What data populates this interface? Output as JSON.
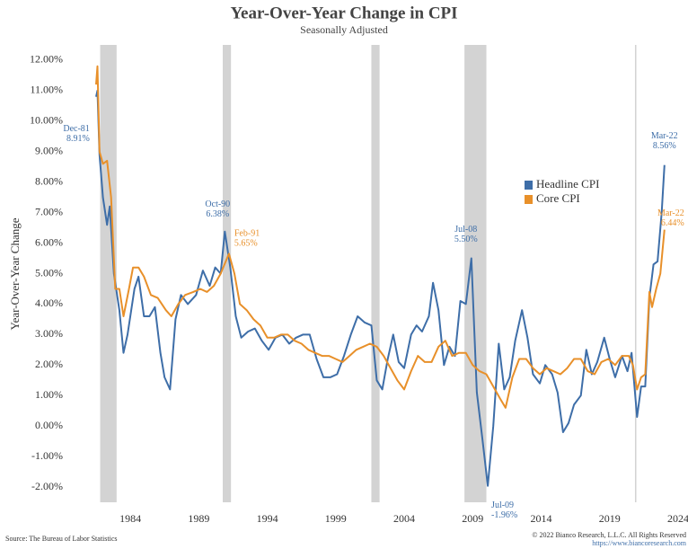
{
  "chart_data": {
    "type": "line",
    "title": "Year-Over-Year Change in CPI",
    "subtitle": "Seasonally Adjusted",
    "y_label": "Year-Over-Year Change",
    "source": "Source: The Bureau of Labor Statistics",
    "copyright": "© 2022 Bianco Research, L.L.C. All Rights Reserved",
    "url": "https://www.biancoresearch.com",
    "xlim": [
      1979.6,
      2024
    ],
    "ylim": [
      -2.5,
      12.5
    ],
    "xticks": [
      1984,
      1989,
      1994,
      1999,
      2004,
      2009,
      2014,
      2019,
      2024
    ],
    "yticks": [
      {
        "value": -2,
        "label": "-2.00%"
      },
      {
        "value": -1,
        "label": "-1.00%"
      },
      {
        "value": 0,
        "label": "0.00%"
      },
      {
        "value": 1,
        "label": "1.00%"
      },
      {
        "value": 2,
        "label": "2.00%"
      },
      {
        "value": 3,
        "label": "3.00%"
      },
      {
        "value": 4,
        "label": "4.00%"
      },
      {
        "value": 5,
        "label": "5.00%"
      },
      {
        "value": 6,
        "label": "6.00%"
      },
      {
        "value": 7,
        "label": "7.00%"
      },
      {
        "value": 8,
        "label": "8.00%"
      },
      {
        "value": 9,
        "label": "9.00%"
      },
      {
        "value": 10,
        "label": "10.00%"
      },
      {
        "value": 11,
        "label": "11.00%"
      },
      {
        "value": 12,
        "label": "12.00%"
      }
    ],
    "grid": false,
    "legend": "right",
    "shaded_ranges": [
      [
        1981.8,
        1983.0
      ],
      [
        1990.75,
        1991.35
      ],
      [
        2001.6,
        2002.2
      ],
      [
        2008.4,
        2010.0
      ],
      [
        2020.85,
        2020.95
      ]
    ],
    "shade_color": "#d3d3d3",
    "series": [
      {
        "name": "Headline CPI",
        "color": "#3e6ea8",
        "x": [
          1981.5,
          1981.6,
          1981.75,
          1982.0,
          1982.3,
          1982.5,
          1982.8,
          1983.2,
          1983.5,
          1983.8,
          1984.3,
          1984.6,
          1985.0,
          1985.4,
          1985.8,
          1986.2,
          1986.5,
          1986.9,
          1987.3,
          1987.7,
          1988.2,
          1988.8,
          1989.3,
          1989.8,
          1990.2,
          1990.6,
          1990.9,
          1991.3,
          1991.7,
          1992.1,
          1992.6,
          1993.1,
          1993.6,
          1994.1,
          1994.6,
          1995.1,
          1995.6,
          1996.1,
          1996.6,
          1997.1,
          1997.6,
          1998.1,
          1998.6,
          1999.1,
          1999.6,
          2000.1,
          2000.6,
          2001.1,
          2001.6,
          2002.0,
          2002.4,
          2002.8,
          2003.2,
          2003.6,
          2004.0,
          2004.5,
          2004.9,
          2005.3,
          2005.8,
          2006.1,
          2006.5,
          2006.9,
          2007.3,
          2007.7,
          2008.1,
          2008.5,
          2008.9,
          2009.3,
          2009.7,
          2010.1,
          2010.5,
          2010.9,
          2011.3,
          2011.7,
          2012.1,
          2012.6,
          2013.0,
          2013.4,
          2013.9,
          2014.3,
          2014.8,
          2015.2,
          2015.6,
          2016.0,
          2016.4,
          2016.9,
          2017.3,
          2017.7,
          2018.1,
          2018.6,
          2019.0,
          2019.4,
          2019.9,
          2020.3,
          2020.6,
          2021.0,
          2021.3,
          2021.6,
          2021.9,
          2022.2,
          2022.5,
          2022.8,
          2023.0
        ],
        "values": [
          10.8,
          11.0,
          8.9,
          7.5,
          6.6,
          7.2,
          5.0,
          3.8,
          2.4,
          3.0,
          4.5,
          4.9,
          3.6,
          3.6,
          3.9,
          2.4,
          1.6,
          1.2,
          3.5,
          4.3,
          4.0,
          4.3,
          5.1,
          4.6,
          5.2,
          5.0,
          6.38,
          5.2,
          3.6,
          2.9,
          3.1,
          3.2,
          2.8,
          2.5,
          2.9,
          3.0,
          2.7,
          2.9,
          3.0,
          3.0,
          2.2,
          1.6,
          1.6,
          1.7,
          2.3,
          3.0,
          3.6,
          3.4,
          3.3,
          1.5,
          1.2,
          2.2,
          3.0,
          2.1,
          1.9,
          3.0,
          3.3,
          3.1,
          3.6,
          4.7,
          3.8,
          2.0,
          2.6,
          2.3,
          4.1,
          4.0,
          5.5,
          1.1,
          -0.4,
          -1.96,
          0.0,
          2.7,
          1.2,
          1.6,
          2.8,
          3.8,
          2.9,
          1.7,
          1.4,
          2.0,
          1.7,
          1.1,
          -0.2,
          0.1,
          0.7,
          1.0,
          2.5,
          1.7,
          2.1,
          2.9,
          2.2,
          1.6,
          2.3,
          1.8,
          2.4,
          0.3,
          1.3,
          1.3,
          4.2,
          5.3,
          5.4,
          7.0,
          8.56
        ]
      },
      {
        "name": "Core CPI",
        "color": "#e8902a",
        "x": [
          1981.5,
          1981.6,
          1981.75,
          1982.0,
          1982.3,
          1982.6,
          1982.9,
          1983.2,
          1983.5,
          1983.9,
          1984.2,
          1984.6,
          1985.0,
          1985.5,
          1986.0,
          1986.6,
          1987.0,
          1987.5,
          1988.0,
          1988.6,
          1989.1,
          1989.6,
          1990.1,
          1990.6,
          1991.2,
          1991.6,
          1992.0,
          1992.5,
          1993.0,
          1993.5,
          1994.0,
          1994.5,
          1995.0,
          1995.5,
          1996.0,
          1996.5,
          1997.0,
          1997.5,
          1998.0,
          1998.5,
          1999.0,
          1999.5,
          2000.0,
          2000.5,
          2001.0,
          2001.5,
          2002.0,
          2002.5,
          2003.0,
          2003.5,
          2004.0,
          2004.5,
          2005.0,
          2005.5,
          2006.0,
          2006.5,
          2007.0,
          2007.5,
          2008.0,
          2008.5,
          2009.0,
          2009.5,
          2010.0,
          2010.5,
          2011.0,
          2011.4,
          2011.9,
          2012.4,
          2012.9,
          2013.4,
          2013.9,
          2014.4,
          2014.9,
          2015.4,
          2015.9,
          2016.4,
          2016.9,
          2017.4,
          2017.9,
          2018.4,
          2018.9,
          2019.4,
          2019.9,
          2020.4,
          2020.7,
          2021.0,
          2021.3,
          2021.6,
          2021.9,
          2022.1,
          2022.4,
          2022.7,
          2023.0
        ],
        "values": [
          11.2,
          11.8,
          9.0,
          8.6,
          8.7,
          7.5,
          4.5,
          4.5,
          3.6,
          4.5,
          5.2,
          5.2,
          4.9,
          4.3,
          4.2,
          3.8,
          3.6,
          4.0,
          4.3,
          4.4,
          4.5,
          4.4,
          4.6,
          5.0,
          5.65,
          5.0,
          4.0,
          3.8,
          3.5,
          3.3,
          2.9,
          2.9,
          3.0,
          3.0,
          2.8,
          2.7,
          2.5,
          2.4,
          2.3,
          2.3,
          2.2,
          2.1,
          2.3,
          2.5,
          2.6,
          2.7,
          2.6,
          2.3,
          1.9,
          1.5,
          1.2,
          1.8,
          2.3,
          2.1,
          2.1,
          2.6,
          2.8,
          2.3,
          2.4,
          2.4,
          2.0,
          1.8,
          1.7,
          1.3,
          0.9,
          0.6,
          1.6,
          2.2,
          2.2,
          1.9,
          1.7,
          1.9,
          1.8,
          1.7,
          1.9,
          2.2,
          2.2,
          1.8,
          1.7,
          2.1,
          2.2,
          2.0,
          2.3,
          2.3,
          2.0,
          1.2,
          1.6,
          1.7,
          4.4,
          3.9,
          4.5,
          5.0,
          6.44
        ]
      }
    ],
    "annotations": [
      {
        "label": "Dec-81",
        "value_label": "8.91%",
        "x": 1981.75,
        "y": 8.91,
        "series": 0
      },
      {
        "label": "Oct-90",
        "value_label": "6.38%",
        "x": 1990.9,
        "y": 6.38,
        "series": 0
      },
      {
        "label": "Feb-91",
        "value_label": "5.65%",
        "x": 1991.2,
        "y": 5.65,
        "series": 1
      },
      {
        "label": "Jul-08",
        "value_label": "5.50%",
        "x": 2008.9,
        "y": 5.5,
        "series": 0
      },
      {
        "label": "Jul-09",
        "value_label": "-1.96%",
        "x": 2010.1,
        "y": -1.96,
        "series": 0
      },
      {
        "label": "Mar-22",
        "value_label": "8.56%",
        "x": 2023.0,
        "y": 8.56,
        "series": 0
      },
      {
        "label": "Mar-22",
        "value_label": "6.44%",
        "x": 2023.0,
        "y": 6.44,
        "series": 1
      }
    ]
  }
}
